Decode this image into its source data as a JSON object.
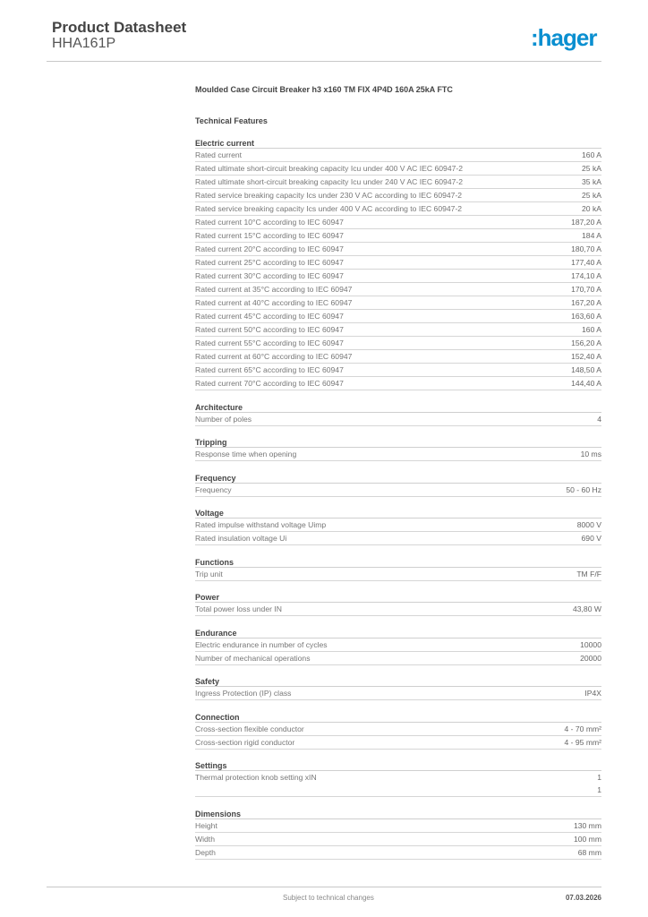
{
  "header": {
    "title": "Product Datasheet",
    "code": "HHA161P",
    "logo": ":hager",
    "brand_color": "#0a8fd0"
  },
  "description": "Moulded Case Circuit Breaker h3 x160 TM FIX 4P4D  160A 25kA FTC",
  "technical_features": "Technical Features",
  "sections": [
    {
      "title": "Electric current",
      "rows": [
        {
          "label": "Rated current",
          "value": "160 A"
        },
        {
          "label": "Rated ultimate short-circuit breaking capacity Icu under 400 V AC IEC 60947-2",
          "value": "25 kA"
        },
        {
          "label": "Rated ultimate short-circuit breaking capacity Icu under 240 V AC IEC 60947-2",
          "value": "35 kA"
        },
        {
          "label": "Rated service breaking capacity Ics under 230 V AC according to IEC 60947-2",
          "value": "25 kA"
        },
        {
          "label": "Rated service breaking capacity Ics under 400 V AC according to IEC 60947-2",
          "value": "20 kA"
        },
        {
          "label": "Rated current 10°C according to IEC 60947",
          "value": "187,20 A"
        },
        {
          "label": "Rated current 15°C according to IEC 60947",
          "value": "184 A"
        },
        {
          "label": "Rated current 20°C according to IEC 60947",
          "value": "180,70 A"
        },
        {
          "label": "Rated current 25°C according to IEC 60947",
          "value": "177,40 A"
        },
        {
          "label": "Rated current 30°C according to IEC 60947",
          "value": "174,10 A"
        },
        {
          "label": "Rated current at 35°C according to IEC 60947",
          "value": "170,70 A"
        },
        {
          "label": "Rated current at 40°C according to IEC 60947",
          "value": "167,20 A"
        },
        {
          "label": "Rated current 45°C according to IEC 60947",
          "value": "163,60 A"
        },
        {
          "label": "Rated current 50°C according to IEC 60947",
          "value": "160 A"
        },
        {
          "label": "Rated current 55°C according to IEC 60947",
          "value": "156,20 A"
        },
        {
          "label": "Rated current at 60°C according to IEC 60947",
          "value": "152,40 A"
        },
        {
          "label": "Rated current 65°C according to IEC 60947",
          "value": "148,50 A"
        },
        {
          "label": "Rated current 70°C according to IEC 60947",
          "value": "144,40 A"
        }
      ]
    },
    {
      "title": "Architecture",
      "rows": [
        {
          "label": "Number of poles",
          "value": "4"
        }
      ]
    },
    {
      "title": "Tripping",
      "rows": [
        {
          "label": "Response time when opening",
          "value": "10 ms"
        }
      ]
    },
    {
      "title": "Frequency",
      "rows": [
        {
          "label": "Frequency",
          "value": "50 - 60 Hz"
        }
      ]
    },
    {
      "title": "Voltage",
      "rows": [
        {
          "label": "Rated impulse withstand voltage Uimp",
          "value": "8000 V"
        },
        {
          "label": "Rated insulation voltage Ui",
          "value": "690 V"
        }
      ]
    },
    {
      "title": "Functions",
      "rows": [
        {
          "label": "Trip unit",
          "value": "TM F/F"
        }
      ]
    },
    {
      "title": "Power",
      "rows": [
        {
          "label": "Total power loss under IN",
          "value": "43,80 W"
        }
      ]
    },
    {
      "title": "Endurance",
      "rows": [
        {
          "label": "Electric endurance in number of cycles",
          "value": "10000"
        },
        {
          "label": "Number of mechanical operations",
          "value": "20000"
        }
      ]
    },
    {
      "title": "Safety",
      "rows": [
        {
          "label": "Ingress Protection (IP) class",
          "value": "IP4X"
        }
      ]
    },
    {
      "title": "Connection",
      "rows": [
        {
          "label": "Cross-section flexible conductor",
          "value": "4 - 70 mm²"
        },
        {
          "label": "Cross-section rigid conductor",
          "value": "4 - 95 mm²"
        }
      ]
    },
    {
      "title": "Settings",
      "rows": [
        {
          "label": "Thermal protection knob setting xIN",
          "value": "1\n1"
        }
      ]
    },
    {
      "title": "Dimensions",
      "rows": [
        {
          "label": "Height",
          "value": "130 mm"
        },
        {
          "label": "Width",
          "value": "100 mm"
        },
        {
          "label": "Depth",
          "value": "68 mm"
        }
      ]
    }
  ],
  "footer": {
    "note": "Subject to technical changes",
    "date": "07.03.2026"
  }
}
